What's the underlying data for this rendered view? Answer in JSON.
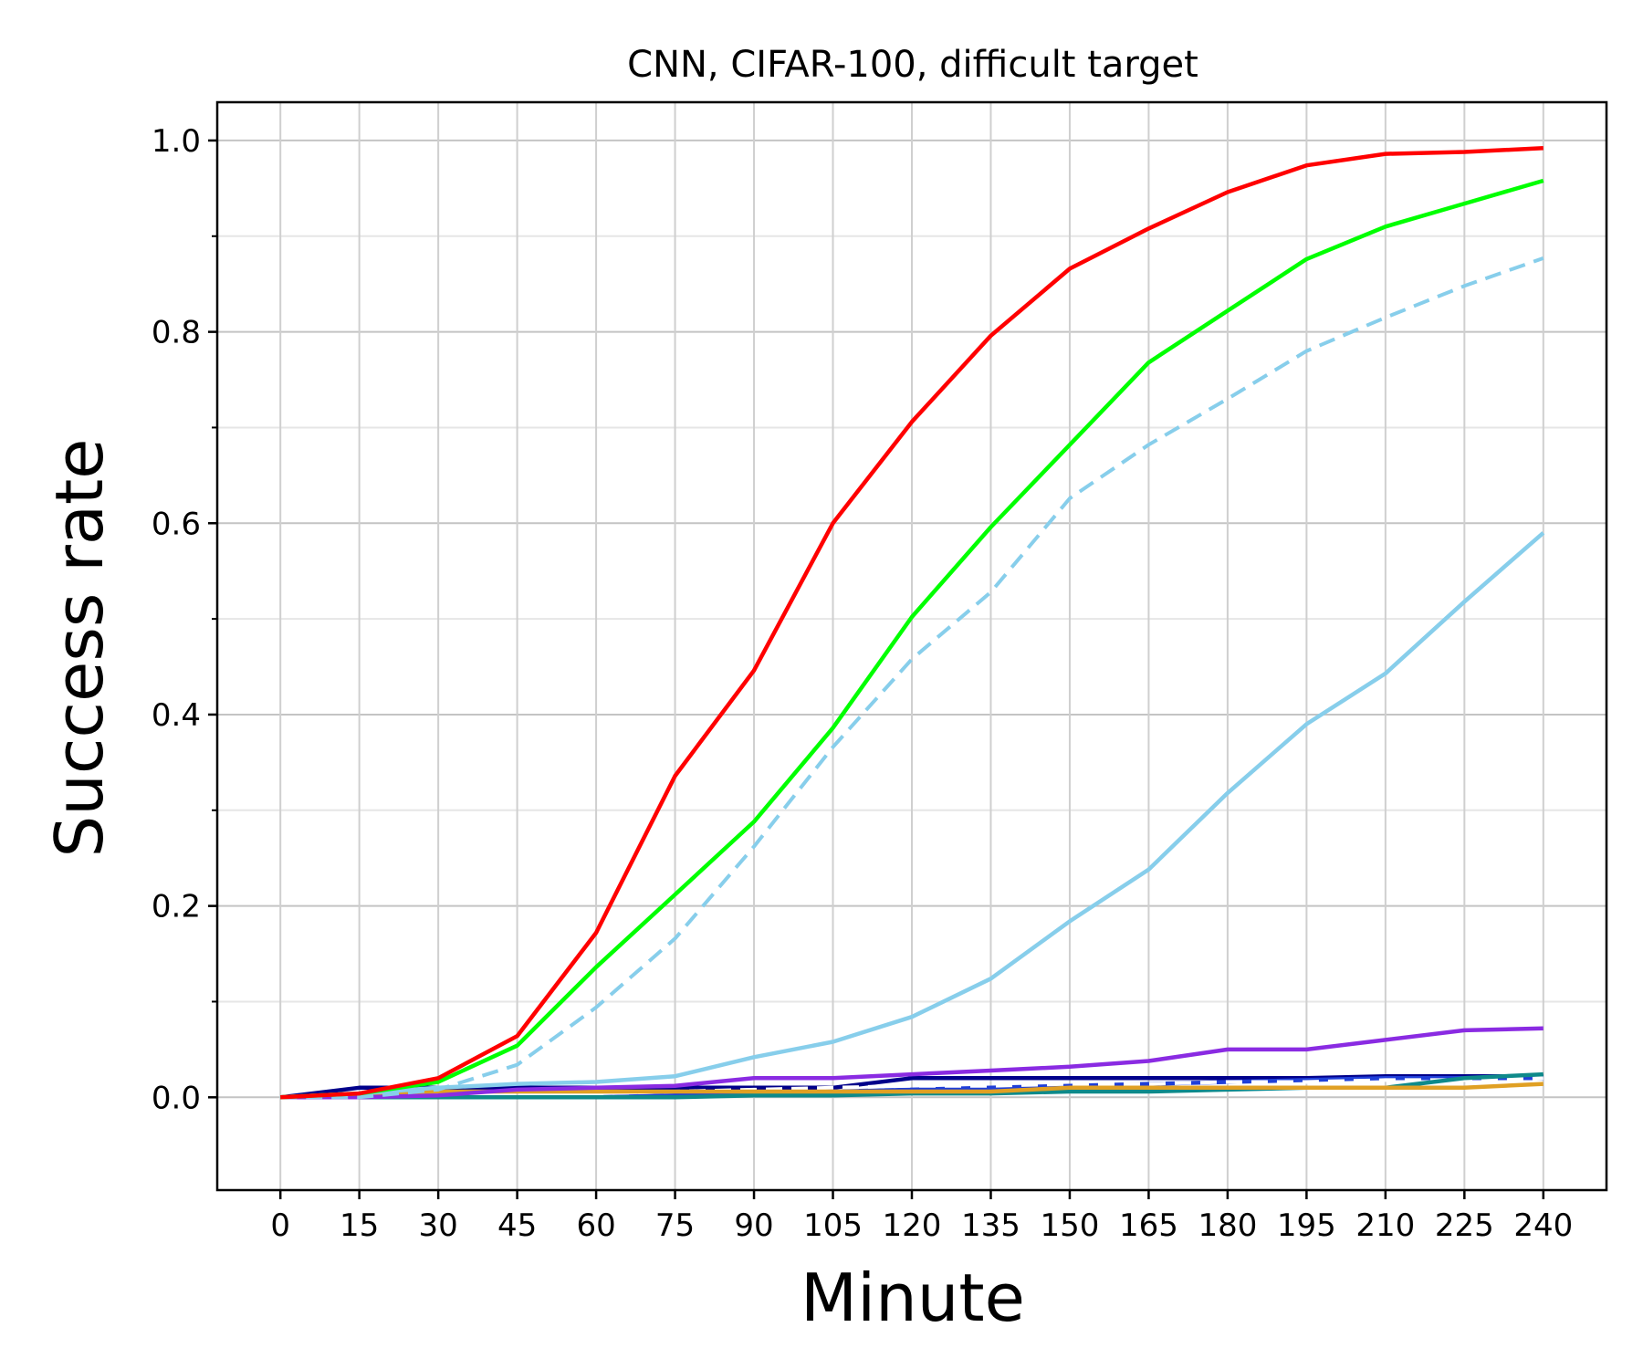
{
  "chart_data": {
    "type": "line",
    "title": "CNN, CIFAR-100, difficult target",
    "xlabel": "Minute",
    "ylabel": "Success rate",
    "x": [
      0,
      15,
      30,
      45,
      60,
      75,
      90,
      105,
      120,
      135,
      150,
      165,
      180,
      195,
      210,
      225,
      240
    ],
    "x_ticks": [
      "0",
      "15",
      "30",
      "45",
      "60",
      "75",
      "90",
      "105",
      "120",
      "135",
      "150",
      "165",
      "180",
      "195",
      "210",
      "225",
      "240"
    ],
    "y_ticks": [
      "0.0",
      "0.2",
      "0.4",
      "0.6",
      "0.8",
      "1.0"
    ],
    "y_tick_values": [
      0.0,
      0.2,
      0.4,
      0.6,
      0.8,
      1.0
    ],
    "y_minor_ticks": [
      0.1,
      0.3,
      0.5,
      0.7,
      0.9
    ],
    "xlim": [
      -12,
      252
    ],
    "ylim": [
      -0.097,
      1.04
    ],
    "grid": true,
    "legend": "none",
    "series": [
      {
        "name": "dark-blue",
        "color": "#00008b",
        "dashed": false,
        "values": [
          0.0,
          0.01,
          0.01,
          0.01,
          0.01,
          0.01,
          0.01,
          0.01,
          0.02,
          0.02,
          0.02,
          0.02,
          0.02,
          0.02,
          0.022,
          0.022,
          0.022
        ]
      },
      {
        "name": "blue",
        "color": "#1f3fd8",
        "dashed": false,
        "values": [
          0.0,
          0.0,
          0.0,
          0.0,
          0.0,
          0.002,
          0.004,
          0.006,
          0.008,
          0.01,
          0.012,
          0.014,
          0.016,
          0.018,
          0.02,
          0.02,
          0.02
        ]
      },
      {
        "name": "light-dashed-overlay",
        "color": "#ffffff",
        "dashed": true,
        "values": [
          0.0,
          0.0,
          0.0,
          0.0,
          0.004,
          0.006,
          0.008,
          0.01,
          0.012,
          0.012,
          0.014,
          0.014,
          0.016,
          0.016,
          0.018,
          0.018,
          0.02
        ]
      },
      {
        "name": "teal",
        "color": "#0e8a8a",
        "dashed": false,
        "values": [
          0.0,
          0.0,
          0.0,
          0.0,
          0.0,
          0.0,
          0.002,
          0.002,
          0.004,
          0.004,
          0.006,
          0.006,
          0.008,
          0.01,
          0.01,
          0.02,
          0.024
        ]
      },
      {
        "name": "goldenrod",
        "color": "#e0a024",
        "dashed": false,
        "values": [
          0.0,
          0.004,
          0.006,
          0.006,
          0.006,
          0.006,
          0.006,
          0.006,
          0.006,
          0.006,
          0.01,
          0.01,
          0.01,
          0.01,
          0.01,
          0.01,
          0.014
        ]
      },
      {
        "name": "purple",
        "color": "#8a2be2",
        "dashed": false,
        "values": [
          0.0,
          0.0,
          0.002,
          0.008,
          0.01,
          0.012,
          0.02,
          0.02,
          0.024,
          0.028,
          0.032,
          0.038,
          0.05,
          0.05,
          0.06,
          0.07,
          0.072
        ]
      },
      {
        "name": "skyblue",
        "color": "#87ceeb",
        "dashed": false,
        "values": [
          0.0,
          0.004,
          0.01,
          0.014,
          0.016,
          0.022,
          0.042,
          0.058,
          0.084,
          0.124,
          0.184,
          0.238,
          0.318,
          0.39,
          0.443,
          0.518,
          0.59
        ]
      },
      {
        "name": "skyblue-dashed",
        "color": "#87ceeb",
        "dashed": true,
        "values": [
          0.0,
          0.0,
          0.008,
          0.034,
          0.094,
          0.166,
          0.262,
          0.366,
          0.458,
          0.528,
          0.626,
          0.682,
          0.73,
          0.78,
          0.815,
          0.848,
          0.877
        ]
      },
      {
        "name": "green",
        "color": "#00ff00",
        "dashed": false,
        "values": [
          0.0,
          0.004,
          0.016,
          0.054,
          0.136,
          0.212,
          0.288,
          0.386,
          0.502,
          0.596,
          0.682,
          0.768,
          0.822,
          0.876,
          0.91,
          0.934,
          0.958
        ]
      },
      {
        "name": "red",
        "color": "#ff0000",
        "dashed": false,
        "values": [
          0.0,
          0.004,
          0.02,
          0.064,
          0.172,
          0.336,
          0.446,
          0.6,
          0.706,
          0.796,
          0.866,
          0.908,
          0.946,
          0.974,
          0.986,
          0.988,
          0.992
        ]
      }
    ]
  }
}
